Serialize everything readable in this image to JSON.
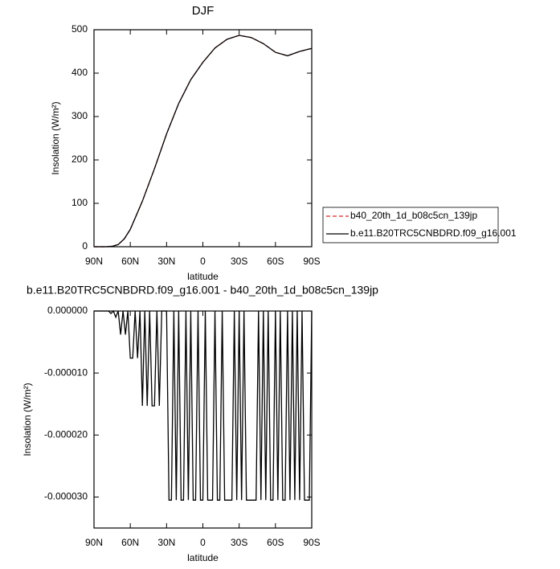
{
  "chart_data": [
    {
      "type": "line",
      "title": "DJF",
      "xlabel": "latitude",
      "ylabel": "Insolation (W/m²)",
      "x": [
        90,
        80,
        75,
        70,
        65,
        60,
        50,
        40,
        30,
        20,
        10,
        0,
        -10,
        -20,
        -30,
        -40,
        -50,
        -60,
        -70,
        -80,
        -90
      ],
      "xlim": [
        90,
        -90
      ],
      "xticks": [
        {
          "value": 90,
          "label": "90N"
        },
        {
          "value": 60,
          "label": "60N"
        },
        {
          "value": 30,
          "label": "30N"
        },
        0,
        {
          "value": -30,
          "label": "30S"
        },
        {
          "value": -60,
          "label": "60S"
        },
        {
          "value": -90,
          "label": "90S"
        }
      ],
      "ylim": [
        0,
        500
      ],
      "yticks": [
        0,
        100,
        200,
        300,
        400,
        500
      ],
      "legend": "right",
      "series": [
        {
          "name": "b.e11.B20TRC5CNBDRD.f09_g16.001",
          "color": "#000000",
          "dash": false,
          "values": [
            0,
            0,
            1,
            5,
            18,
            40,
            105,
            180,
            260,
            330,
            385,
            425,
            458,
            478,
            487,
            482,
            468,
            448,
            440,
            450,
            457
          ]
        },
        {
          "name": "b40_20th_1d_b08c5cn_139jp",
          "color": "#d62728",
          "dash": true,
          "values": [
            0,
            0,
            1,
            5,
            18,
            40,
            105,
            180,
            260,
            330,
            385,
            425,
            458,
            478,
            487,
            482,
            468,
            448,
            440,
            450,
            457
          ]
        }
      ]
    },
    {
      "type": "line",
      "title": "b.e11.B20TRC5CNBDRD.f09_g16.001 - b40_20th_1d_b08c5cn_139jp",
      "xlabel": "latitude",
      "ylabel": "Insolation (W/m²)",
      "x": [
        90,
        88,
        86,
        84,
        82,
        80,
        78,
        76,
        74,
        72,
        70,
        68,
        66,
        64,
        62,
        60,
        58,
        56,
        54,
        52,
        50,
        48,
        46,
        44,
        42,
        40,
        38,
        36,
        34,
        32,
        30,
        28,
        26,
        24,
        22,
        20,
        18,
        16,
        14,
        12,
        10,
        8,
        6,
        4,
        2,
        0,
        -2,
        -4,
        -6,
        -8,
        -10,
        -12,
        -14,
        -16,
        -18,
        -20,
        -22,
        -24,
        -26,
        -28,
        -30,
        -32,
        -34,
        -36,
        -38,
        -40,
        -42,
        -44,
        -46,
        -48,
        -50,
        -52,
        -54,
        -56,
        -58,
        -60,
        -62,
        -64,
        -66,
        -68,
        -70,
        -72,
        -74,
        -76,
        -78,
        -80,
        -82,
        -84,
        -86,
        -88,
        -90
      ],
      "xlim": [
        90,
        -90
      ],
      "xticks": [
        {
          "value": 90,
          "label": "90N"
        },
        {
          "value": 60,
          "label": "60N"
        },
        {
          "value": 30,
          "label": "30N"
        },
        0,
        {
          "value": -30,
          "label": "30S"
        },
        {
          "value": -60,
          "label": "60S"
        },
        {
          "value": -90,
          "label": "90S"
        }
      ],
      "ylim": [
        -3.5e-05,
        0
      ],
      "yticks": [
        {
          "value": 0,
          "label": "0.000000"
        },
        {
          "value": -1e-05,
          "label": "-0.000010"
        },
        {
          "value": -2e-05,
          "label": "-0.000020"
        },
        {
          "value": -3e-05,
          "label": "-0.000030"
        }
      ],
      "series": [
        {
          "color": "#000000",
          "dash": false,
          "values": [
            0,
            0,
            0,
            0,
            0,
            0,
            0,
            -4e-07,
            0,
            -1e-06,
            0,
            -3.8e-06,
            0,
            -3.8e-06,
            0,
            -7.6e-06,
            -7.6e-06,
            0,
            -7.6e-06,
            0,
            -1.53e-05,
            0,
            -1.53e-05,
            0,
            -1.53e-05,
            -1.53e-05,
            0,
            -1.53e-05,
            0,
            0,
            0,
            -3.05e-05,
            -3.05e-05,
            0,
            -3.05e-05,
            0,
            -3.05e-05,
            -3.05e-05,
            0,
            -3.05e-05,
            0,
            -3.05e-05,
            -3.05e-05,
            0,
            -3.05e-05,
            -3.05e-05,
            0,
            -3.05e-05,
            -3.05e-05,
            -3.05e-05,
            0,
            -3.05e-05,
            -3.05e-05,
            0,
            -3.05e-05,
            -3.05e-05,
            -3.05e-05,
            -3.05e-05,
            0,
            -3.05e-05,
            0,
            -3.05e-05,
            0,
            -3.05e-05,
            -3.05e-05,
            -3.05e-05,
            -3.05e-05,
            -3.05e-05,
            0,
            -3.05e-05,
            0,
            -3.05e-05,
            0,
            -3.05e-05,
            -3.05e-05,
            0,
            -3.05e-05,
            0,
            -3.05e-05,
            -3.05e-05,
            0,
            -3.05e-05,
            0,
            -3.05e-05,
            0,
            -3.05e-05,
            0,
            -3.05e-05,
            -3.05e-05,
            -3.05e-05,
            0
          ]
        }
      ]
    }
  ]
}
